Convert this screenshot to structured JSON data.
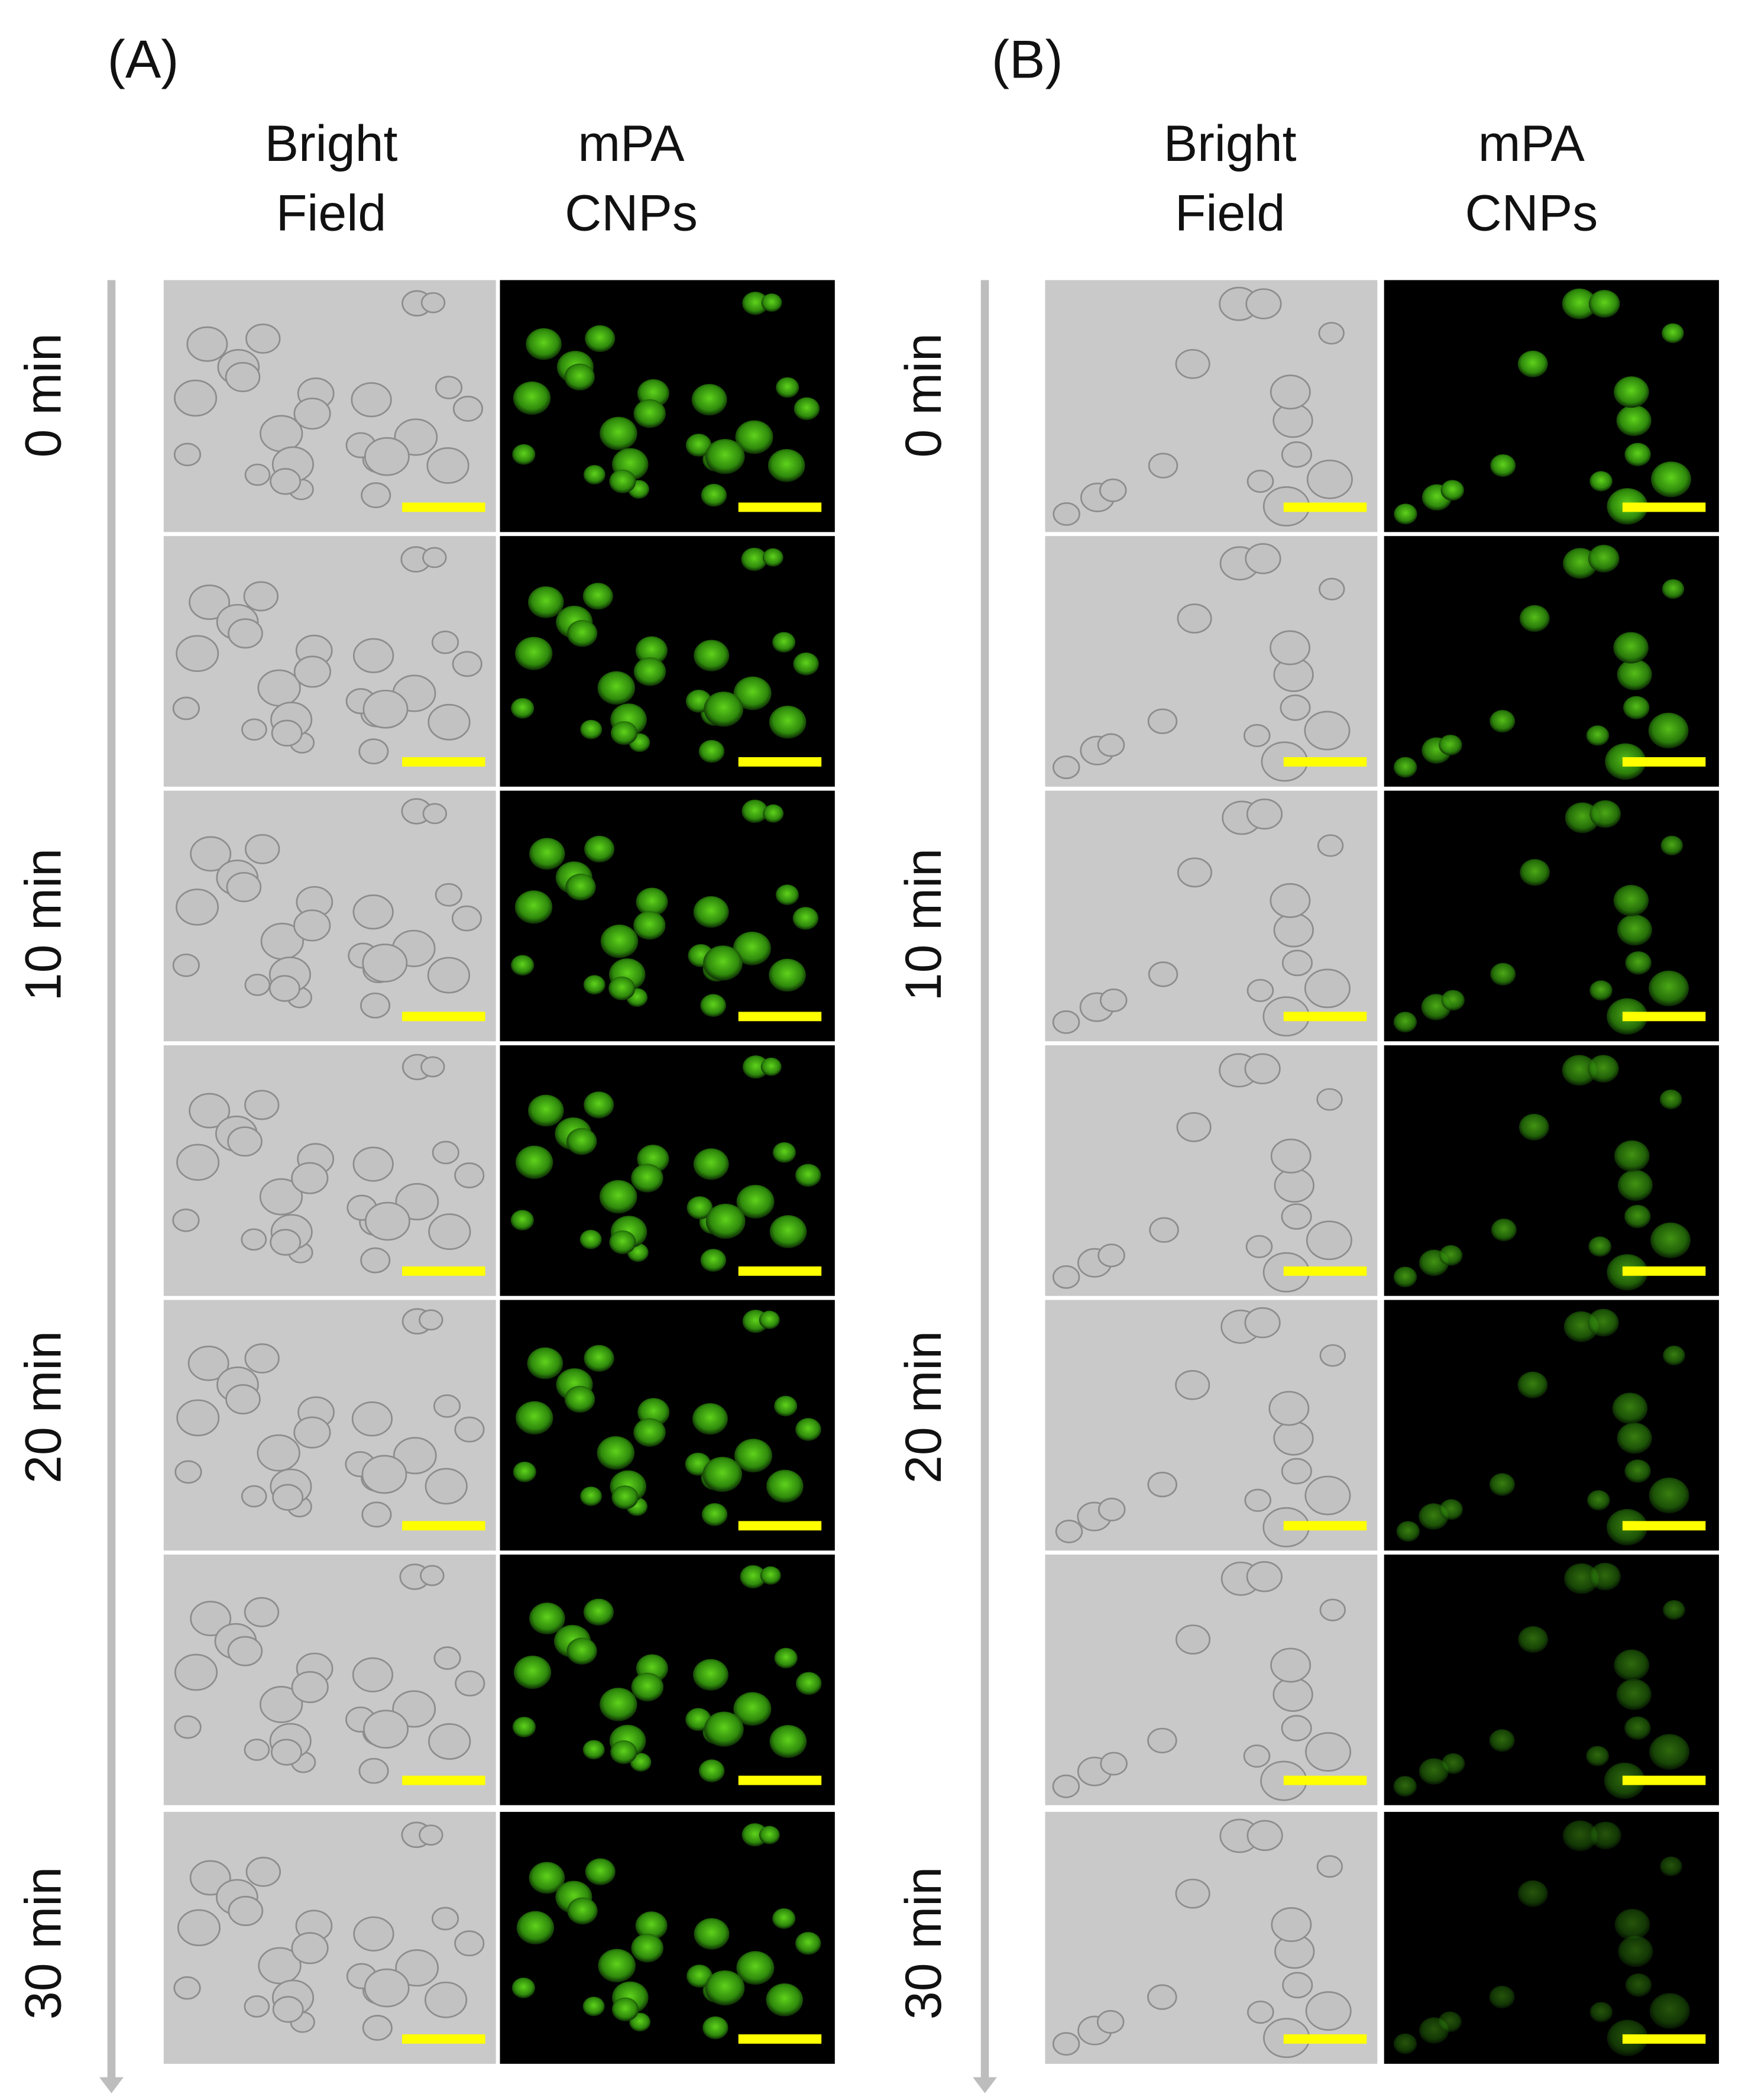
{
  "panels": [
    {
      "label": "(A)",
      "columns": [
        [
          "Bright",
          "Field"
        ],
        [
          "mPA",
          "CNPs"
        ]
      ],
      "time_labels": [
        "0 min",
        "10 min",
        "20 min",
        "30 min"
      ]
    },
    {
      "label": "(B)",
      "columns": [
        [
          "Bright",
          "Field"
        ],
        [
          "mPA",
          "CNPs"
        ]
      ],
      "time_labels": [
        "0 min",
        "10 min",
        "20 min",
        "30 min"
      ]
    }
  ]
}
